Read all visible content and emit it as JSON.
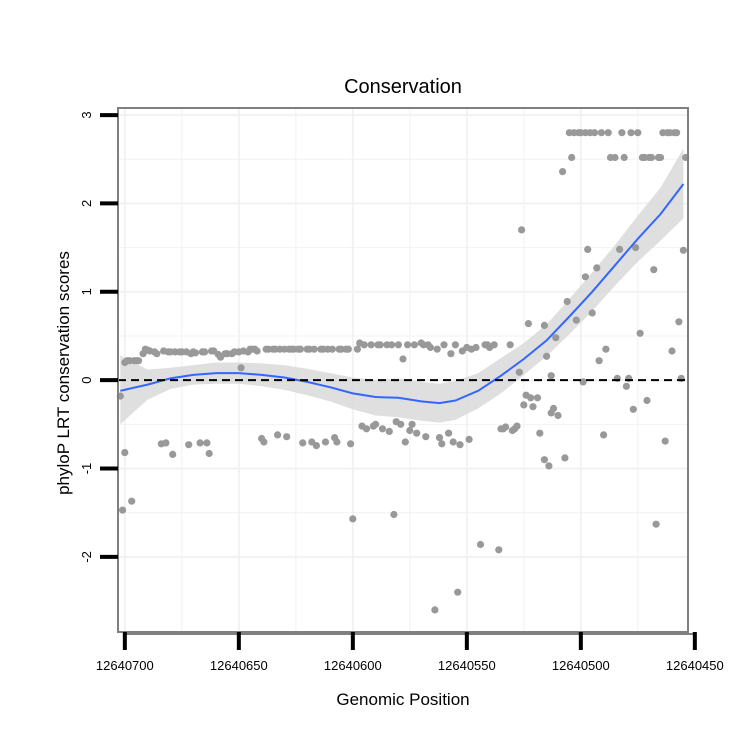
{
  "chart_data": {
    "type": "scatter",
    "title": "Conservation",
    "xlabel": "Genomic Position",
    "ylabel": "phyloP LRT conservation scores",
    "x_reversed": true,
    "xlim": [
      12640453,
      12640703
    ],
    "ylim": [
      -2.85,
      3.08
    ],
    "x_ticks": [
      12640700,
      12640650,
      12640600,
      12640550,
      12640500,
      12640450
    ],
    "x_tick_labels": [
      "12640700",
      "12640650",
      "12640600",
      "12640550",
      "12640500",
      "12640450"
    ],
    "y_ticks": [
      -2,
      -1,
      0,
      1,
      2,
      3
    ],
    "y_tick_labels": [
      "-2",
      "-1",
      "0",
      "1",
      "2",
      "3"
    ],
    "grid": true,
    "reference_line": {
      "y": 0,
      "style": "dashed"
    },
    "colors": {
      "points": "#999999",
      "smooth": "#3366FF",
      "band": "#d9d9d9",
      "reference": "#000000",
      "panel_border": "#7f7f7f",
      "grid": "#f2f2f2"
    },
    "series": [
      {
        "name": "scores",
        "kind": "points",
        "points": [
          [
            12640702,
            -0.18
          ],
          [
            12640701,
            -1.47
          ],
          [
            12640700,
            -0.82
          ],
          [
            12640700,
            0.2
          ],
          [
            12640699,
            0.22
          ],
          [
            12640698,
            0.22
          ],
          [
            12640697,
            -1.37
          ],
          [
            12640696,
            0.22
          ],
          [
            12640695,
            0.22
          ],
          [
            12640694,
            0.22
          ],
          [
            12640692,
            0.3
          ],
          [
            12640691,
            0.35
          ],
          [
            12640690,
            0.34
          ],
          [
            12640689,
            0.33
          ],
          [
            12640687,
            0.32
          ],
          [
            12640686,
            0.3
          ],
          [
            12640684,
            -0.72
          ],
          [
            12640683,
            0.33
          ],
          [
            12640682,
            -0.71
          ],
          [
            12640681,
            0.32
          ],
          [
            12640680,
            0.32
          ],
          [
            12640679,
            -0.84
          ],
          [
            12640678,
            0.32
          ],
          [
            12640676,
            0.32
          ],
          [
            12640675,
            0.32
          ],
          [
            12640673,
            0.32
          ],
          [
            12640672,
            -0.73
          ],
          [
            12640671,
            0.3
          ],
          [
            12640670,
            0.32
          ],
          [
            12640669,
            0.31
          ],
          [
            12640667,
            -0.71
          ],
          [
            12640666,
            0.32
          ],
          [
            12640665,
            0.32
          ],
          [
            12640664,
            -0.71
          ],
          [
            12640663,
            -0.83
          ],
          [
            12640662,
            0.33
          ],
          [
            12640661,
            0.33
          ],
          [
            12640659,
            0.29
          ],
          [
            12640658,
            0.26
          ],
          [
            12640656,
            0.3
          ],
          [
            12640655,
            0.3
          ],
          [
            12640653,
            0.3
          ],
          [
            12640652,
            0.32
          ],
          [
            12640650,
            0.32
          ],
          [
            12640649,
            0.14
          ],
          [
            12640648,
            0.33
          ],
          [
            12640646,
            0.32
          ],
          [
            12640645,
            0.35
          ],
          [
            12640644,
            0.35
          ],
          [
            12640643,
            0.35
          ],
          [
            12640642,
            0.33
          ],
          [
            12640640,
            -0.66
          ],
          [
            12640639,
            -0.7
          ],
          [
            12640638,
            0.35
          ],
          [
            12640637,
            0.35
          ],
          [
            12640635,
            0.35
          ],
          [
            12640634,
            0.35
          ],
          [
            12640633,
            -0.62
          ],
          [
            12640632,
            0.35
          ],
          [
            12640630,
            0.35
          ],
          [
            12640629,
            -0.64
          ],
          [
            12640628,
            0.35
          ],
          [
            12640627,
            0.35
          ],
          [
            12640626,
            0.35
          ],
          [
            12640624,
            0.35
          ],
          [
            12640623,
            0.35
          ],
          [
            12640622,
            -0.71
          ],
          [
            12640620,
            0.35
          ],
          [
            12640619,
            0.35
          ],
          [
            12640618,
            -0.7
          ],
          [
            12640617,
            0.35
          ],
          [
            12640616,
            -0.74
          ],
          [
            12640614,
            0.35
          ],
          [
            12640613,
            0.35
          ],
          [
            12640612,
            -0.7
          ],
          [
            12640611,
            0.35
          ],
          [
            12640609,
            0.35
          ],
          [
            12640608,
            -0.65
          ],
          [
            12640607,
            -0.7
          ],
          [
            12640606,
            0.35
          ],
          [
            12640605,
            0.35
          ],
          [
            12640603,
            0.35
          ],
          [
            12640602,
            0.35
          ],
          [
            12640601,
            -0.72
          ],
          [
            12640600,
            -1.57
          ],
          [
            12640598,
            0.35
          ],
          [
            12640597,
            0.42
          ],
          [
            12640596,
            -0.52
          ],
          [
            12640595,
            0.4
          ],
          [
            12640594,
            -0.55
          ],
          [
            12640592,
            0.4
          ],
          [
            12640591,
            -0.52
          ],
          [
            12640590,
            -0.5
          ],
          [
            12640589,
            0.4
          ],
          [
            12640588,
            0.4
          ],
          [
            12640587,
            -0.55
          ],
          [
            12640585,
            0.4
          ],
          [
            12640584,
            -0.58
          ],
          [
            12640583,
            0.4
          ],
          [
            12640582,
            -1.52
          ],
          [
            12640581,
            -0.47
          ],
          [
            12640580,
            0.4
          ],
          [
            12640579,
            -0.5
          ],
          [
            12640578,
            0.24
          ],
          [
            12640577,
            -0.7
          ],
          [
            12640576,
            0.4
          ],
          [
            12640575,
            -0.57
          ],
          [
            12640574,
            -0.5
          ],
          [
            12640573,
            0.4
          ],
          [
            12640572,
            -0.6
          ],
          [
            12640570,
            0.42
          ],
          [
            12640569,
            0.4
          ],
          [
            12640568,
            -0.64
          ],
          [
            12640567,
            0.4
          ],
          [
            12640566,
            0.37
          ],
          [
            12640564,
            -2.6
          ],
          [
            12640563,
            0.35
          ],
          [
            12640562,
            -0.65
          ],
          [
            12640561,
            -0.72
          ],
          [
            12640560,
            0.4
          ],
          [
            12640558,
            -0.6
          ],
          [
            12640557,
            0.3
          ],
          [
            12640556,
            -0.7
          ],
          [
            12640555,
            0.4
          ],
          [
            12640554,
            -2.4
          ],
          [
            12640553,
            -0.73
          ],
          [
            12640552,
            0.33
          ],
          [
            12640550,
            0.37
          ],
          [
            12640549,
            -0.67
          ],
          [
            12640548,
            0.35
          ],
          [
            12640546,
            0.37
          ],
          [
            12640544,
            -1.86
          ],
          [
            12640542,
            0.4
          ],
          [
            12640541,
            0.4
          ],
          [
            12640540,
            0.37
          ],
          [
            12640538,
            0.4
          ],
          [
            12640536,
            -1.92
          ],
          [
            12640535,
            -0.55
          ],
          [
            12640534,
            -0.55
          ],
          [
            12640533,
            -0.53
          ],
          [
            12640531,
            0.4
          ],
          [
            12640530,
            -0.57
          ],
          [
            12640529,
            -0.55
          ],
          [
            12640528,
            -0.52
          ],
          [
            12640527,
            0.09
          ],
          [
            12640526,
            1.7
          ],
          [
            12640525,
            -0.28
          ],
          [
            12640524,
            -0.17
          ],
          [
            12640523,
            0.64
          ],
          [
            12640522,
            -0.2
          ],
          [
            12640521,
            -0.3
          ],
          [
            12640519,
            -0.2
          ],
          [
            12640518,
            -0.6
          ],
          [
            12640516,
            -0.9
          ],
          [
            12640516,
            0.62
          ],
          [
            12640515,
            0.27
          ],
          [
            12640514,
            -0.97
          ],
          [
            12640513,
            0.05
          ],
          [
            12640513,
            -0.37
          ],
          [
            12640512,
            -0.32
          ],
          [
            12640511,
            0.48
          ],
          [
            12640510,
            -0.4
          ],
          [
            12640508,
            2.36
          ],
          [
            12640507,
            -0.88
          ],
          [
            12640506,
            0.89
          ],
          [
            12640505,
            2.8
          ],
          [
            12640504,
            2.52
          ],
          [
            12640503,
            2.8
          ],
          [
            12640502,
            0.68
          ],
          [
            12640501,
            2.8
          ],
          [
            12640500,
            2.8
          ],
          [
            12640499,
            -0.02
          ],
          [
            12640498,
            1.17
          ],
          [
            12640498,
            2.8
          ],
          [
            12640497,
            1.48
          ],
          [
            12640496,
            2.8
          ],
          [
            12640495,
            0.76
          ],
          [
            12640494,
            2.8
          ],
          [
            12640493,
            1.27
          ],
          [
            12640492,
            0.22
          ],
          [
            12640491,
            2.8
          ],
          [
            12640490,
            -0.62
          ],
          [
            12640489,
            0.35
          ],
          [
            12640488,
            2.8
          ],
          [
            12640487,
            2.52
          ],
          [
            12640485,
            2.52
          ],
          [
            12640484,
            0.02
          ],
          [
            12640483,
            1.48
          ],
          [
            12640482,
            2.8
          ],
          [
            12640481,
            2.52
          ],
          [
            12640480,
            -0.07
          ],
          [
            12640479,
            0.02
          ],
          [
            12640478,
            2.8
          ],
          [
            12640477,
            -0.33
          ],
          [
            12640476,
            1.5
          ],
          [
            12640475,
            2.8
          ],
          [
            12640474,
            0.53
          ],
          [
            12640473,
            2.52
          ],
          [
            12640472,
            2.52
          ],
          [
            12640471,
            -0.23
          ],
          [
            12640470,
            2.52
          ],
          [
            12640469,
            2.52
          ],
          [
            12640468,
            1.25
          ],
          [
            12640467,
            -1.63
          ],
          [
            12640466,
            2.52
          ],
          [
            12640465,
            2.52
          ],
          [
            12640464,
            2.8
          ],
          [
            12640463,
            -0.69
          ],
          [
            12640462,
            2.8
          ],
          [
            12640461,
            2.8
          ],
          [
            12640460,
            0.33
          ],
          [
            12640459,
            2.8
          ],
          [
            12640458,
            2.8
          ],
          [
            12640457,
            0.66
          ],
          [
            12640456,
            0.02
          ],
          [
            12640455,
            1.47
          ],
          [
            12640454,
            2.52
          ]
        ]
      },
      {
        "name": "loess fit",
        "kind": "line",
        "points": [
          [
            12640702,
            -0.12
          ],
          [
            12640690,
            -0.05
          ],
          [
            12640680,
            0.02
          ],
          [
            12640670,
            0.06
          ],
          [
            12640660,
            0.08
          ],
          [
            12640650,
            0.08
          ],
          [
            12640640,
            0.06
          ],
          [
            12640630,
            0.03
          ],
          [
            12640620,
            -0.02
          ],
          [
            12640610,
            -0.08
          ],
          [
            12640600,
            -0.15
          ],
          [
            12640590,
            -0.19
          ],
          [
            12640580,
            -0.2
          ],
          [
            12640570,
            -0.24
          ],
          [
            12640562,
            -0.26
          ],
          [
            12640555,
            -0.23
          ],
          [
            12640545,
            -0.12
          ],
          [
            12640535,
            0.05
          ],
          [
            12640525,
            0.24
          ],
          [
            12640515,
            0.45
          ],
          [
            12640505,
            0.72
          ],
          [
            12640495,
            1.0
          ],
          [
            12640485,
            1.3
          ],
          [
            12640475,
            1.6
          ],
          [
            12640465,
            1.88
          ],
          [
            12640455,
            2.22
          ]
        ]
      },
      {
        "name": "confidence band",
        "kind": "band",
        "lower": [
          -0.5,
          -0.22,
          -0.1,
          -0.05,
          -0.04,
          -0.04,
          -0.07,
          -0.11,
          -0.17,
          -0.24,
          -0.33,
          -0.4,
          -0.42,
          -0.46,
          -0.48,
          -0.45,
          -0.32,
          -0.15,
          0.06,
          0.27,
          0.52,
          0.78,
          1.07,
          1.34,
          1.58,
          1.83
        ],
        "upper": [
          0.28,
          0.12,
          0.14,
          0.17,
          0.2,
          0.2,
          0.19,
          0.17,
          0.13,
          0.08,
          0.03,
          0.0,
          0.02,
          -0.02,
          -0.04,
          -0.01,
          0.08,
          0.25,
          0.42,
          0.63,
          0.92,
          1.22,
          1.53,
          1.86,
          2.18,
          2.62
        ]
      }
    ]
  }
}
